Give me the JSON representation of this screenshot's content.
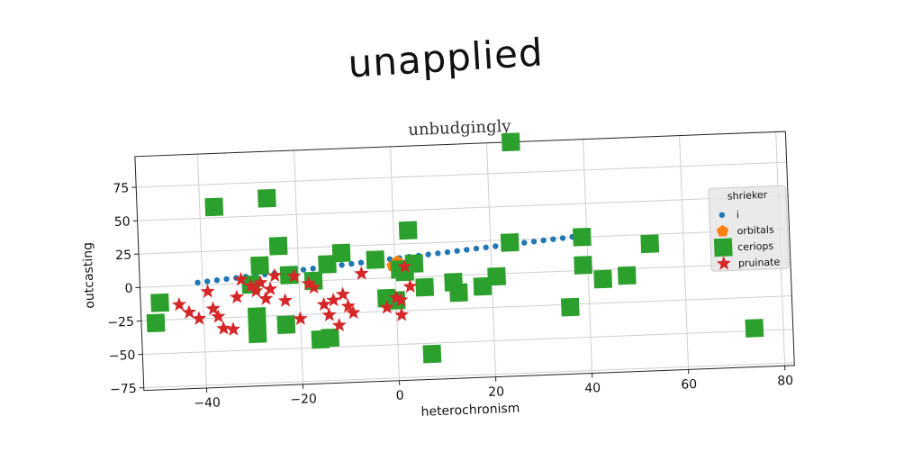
{
  "headline": "unapplied",
  "chart_data": {
    "type": "scatter",
    "title": "unbudgingly",
    "xlabel": "heterochronism",
    "ylabel": "outcasting",
    "xlim": [
      -53,
      82
    ],
    "ylim": [
      -77,
      98
    ],
    "xticks": [
      -40,
      -20,
      0,
      20,
      40,
      60,
      80
    ],
    "yticks": [
      -75,
      -50,
      -25,
      0,
      25,
      50,
      75
    ],
    "xtick_labels": [
      "−40",
      "−20",
      "0",
      "20",
      "40",
      "60",
      "80"
    ],
    "ytick_labels": [
      "−75",
      "−50",
      "−25",
      "0",
      "25",
      "50",
      "75"
    ],
    "grid": true,
    "legend_title": "shrieker",
    "legend_position": "right",
    "series": [
      {
        "name": "i",
        "marker": "circle-small",
        "color": "#1f77b4",
        "x": [
          -41,
          -39,
          -37,
          -35,
          -33,
          -31,
          -29,
          -27,
          -25,
          -23,
          -21,
          -19,
          -17,
          -15,
          -13,
          -11,
          -9,
          -7,
          -5,
          -3,
          -1,
          1,
          3,
          5,
          7,
          9,
          11,
          13,
          15,
          17,
          19,
          21,
          23,
          25,
          27,
          29,
          31,
          33,
          35,
          37
        ],
        "y": [
          2.0,
          2.6,
          3.2,
          3.8,
          4.4,
          5.0,
          5.6,
          6.2,
          6.8,
          7.4,
          8.0,
          8.6,
          9.2,
          9.8,
          10.4,
          11.0,
          11.6,
          12.2,
          12.8,
          13.4,
          14.0,
          14.6,
          15.2,
          15.8,
          16.4,
          17.0,
          17.6,
          18.2,
          18.8,
          19.4,
          20.0,
          20.6,
          21.2,
          21.8,
          22.4,
          23.0,
          23.6,
          24.2,
          24.8,
          25.4
        ]
      },
      {
        "name": "orbitals",
        "marker": "pentagon",
        "color": "#ff7f0e",
        "x": [
          -0.5,
          0.5
        ],
        "y": [
          9,
          12
        ]
      },
      {
        "name": "ceriops",
        "marker": "square",
        "color": "#2ca02c",
        "x": [
          25,
          -37,
          -26,
          -24,
          3,
          -11,
          -28,
          -14,
          -22,
          -17,
          -30,
          -29,
          -4,
          4,
          2,
          6,
          12,
          -49,
          -50,
          -29,
          -23,
          -14,
          0,
          13,
          -2,
          18,
          21,
          -16,
          24,
          36,
          39,
          39,
          43,
          48,
          53,
          74,
          7,
          1
        ],
        "y": [
          98,
          58,
          63,
          27,
          35,
          20,
          13,
          12,
          5,
          0,
          -1,
          -25,
          14,
          10,
          4,
          -8,
          -5,
          -12,
          -27,
          -38,
          -32,
          -43,
          -17,
          -13,
          -15,
          -9,
          -2,
          -44,
          23,
          -27,
          25,
          4,
          -7,
          -5,
          18,
          -48,
          -58,
          6
        ]
      },
      {
        "name": "pruinate",
        "marker": "star",
        "color": "#d62728",
        "x": [
          -45,
          -43,
          -41,
          -39,
          -38,
          -37,
          -36,
          -34,
          -33,
          -32,
          -30,
          -29,
          -28,
          -27,
          -26,
          -25,
          -23,
          -21,
          -20,
          -18,
          -17,
          -15,
          -14,
          -13,
          -12,
          -11,
          -10,
          -9,
          -7,
          -2,
          0,
          1,
          1,
          2,
          3
        ],
        "y": [
          -14,
          -20,
          -25,
          -5,
          -18,
          -24,
          -33,
          -34,
          -10,
          3,
          -2,
          -6,
          0,
          -12,
          -5,
          5,
          -14,
          4,
          -28,
          -2,
          -5,
          -18,
          -26,
          -15,
          -34,
          -11,
          -20,
          -25,
          4,
          -22,
          -15,
          -28,
          -17,
          8,
          -7
        ]
      }
    ]
  }
}
